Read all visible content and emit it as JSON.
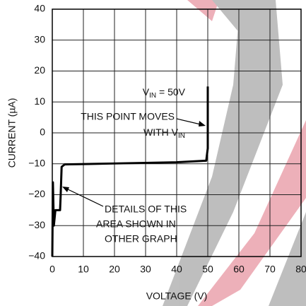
{
  "chart_data": {
    "type": "line",
    "xlabel": "VOLTAGE (V)",
    "ylabel": "CURRENT (µA)",
    "x": [
      0,
      0.2,
      0.5,
      1,
      2.5,
      2.7,
      3,
      4,
      20,
      40,
      49.5,
      50,
      50
    ],
    "values": [
      -40,
      -16,
      -30,
      -25,
      -25,
      -20,
      -11,
      -10.2,
      -9.9,
      -9.5,
      -9,
      -5,
      15
    ],
    "color": "#000000",
    "xlim": [
      0,
      80
    ],
    "ylim": [
      -40,
      40
    ],
    "xticks": [
      0,
      10,
      20,
      30,
      40,
      50,
      60,
      70,
      80
    ],
    "yticks": [
      {
        "value": -40,
        "label": "−40"
      },
      {
        "value": -30,
        "label": "−30"
      },
      {
        "value": -20,
        "label": "−20"
      },
      {
        "value": -10,
        "label": "−10"
      },
      0,
      10,
      20,
      30,
      40
    ],
    "grid": true,
    "annotations": {
      "vin": [
        "V",
        "IN",
        " = 50V"
      ],
      "moves": [
        "THIS POINT MOVES",
        "WITH V",
        "IN"
      ],
      "details": [
        "DETAILS OF THIS",
        "AREA SHOWN IN",
        "OTHER GRAPH"
      ]
    }
  }
}
